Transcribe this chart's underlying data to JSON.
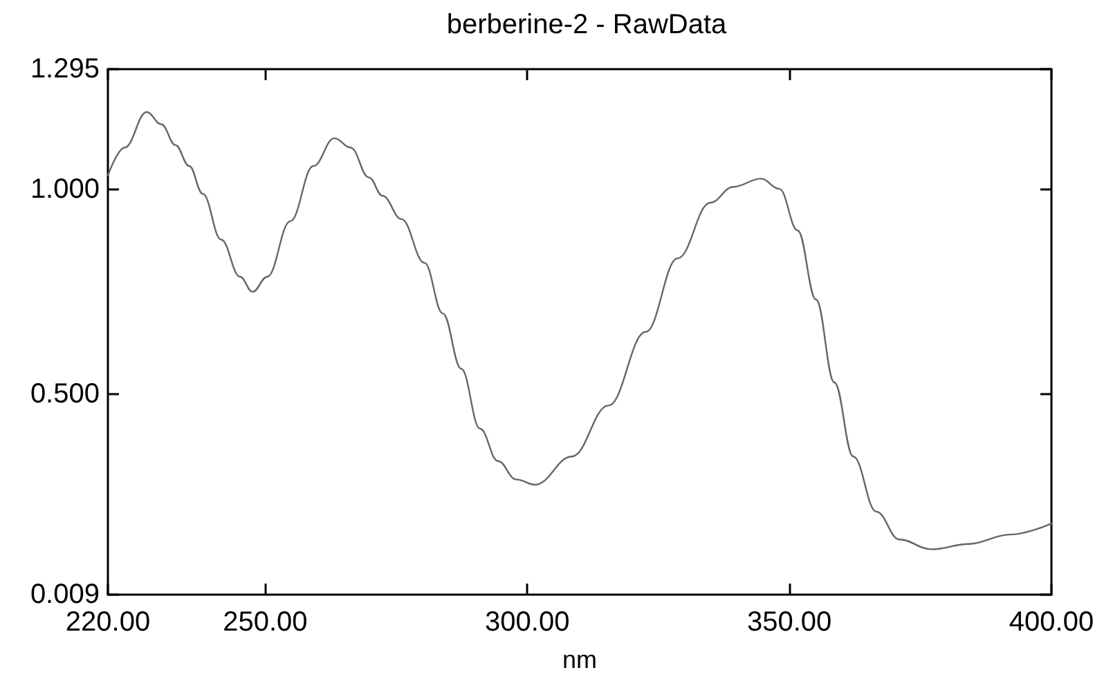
{
  "chart_data": {
    "type": "line",
    "title": "berberine-2 - RawData",
    "xlabel": "nm",
    "x": [
      220,
      223.2,
      227.4,
      230.2,
      232.9,
      235.5,
      238.1,
      241.6,
      245.2,
      247.6,
      250.4,
      254.8,
      259.2,
      263.2,
      266.3,
      269.8,
      272.4,
      276.0,
      280.4,
      283.9,
      287.4,
      291.0,
      294.4,
      297.9,
      301.5,
      308.5,
      315.5,
      322.6,
      328.7,
      334.9,
      339.3,
      344.6,
      348.1,
      351.6,
      355.1,
      358.6,
      362.2,
      366.6,
      371.0,
      377.1,
      384.2,
      392.1,
      400
    ],
    "series": [
      {
        "color": "#666666",
        "values": [
          1.035,
          1.103,
          1.19,
          1.16,
          1.109,
          1.058,
          0.99,
          0.878,
          0.787,
          0.75,
          0.787,
          0.923,
          1.058,
          1.126,
          1.103,
          1.03,
          0.985,
          0.928,
          0.821,
          0.697,
          0.562,
          0.415,
          0.336,
          0.291,
          0.278,
          0.347,
          0.472,
          0.652,
          0.832,
          0.968,
          1.007,
          1.027,
          1.002,
          0.9,
          0.731,
          0.528,
          0.347,
          0.212,
          0.144,
          0.12,
          0.133,
          0.156,
          0.183
        ]
      }
    ],
    "xlim": [
      220,
      400
    ],
    "xticks": [
      {
        "value": 220,
        "label": "220.00"
      },
      {
        "value": 250,
        "label": "250.00"
      },
      {
        "value": 300,
        "label": "300.00"
      },
      {
        "value": 350,
        "label": "350.00"
      },
      {
        "value": 400,
        "label": "400.00"
      }
    ],
    "ylim": [
      0.009,
      1.295
    ],
    "yticks": [
      0.009,
      {
        "value": 0.5,
        "label": "0.500"
      },
      {
        "value": 1,
        "label": "1.000"
      },
      1.295
    ],
    "grid": false,
    "marker": "none",
    "line_style": "solid"
  }
}
